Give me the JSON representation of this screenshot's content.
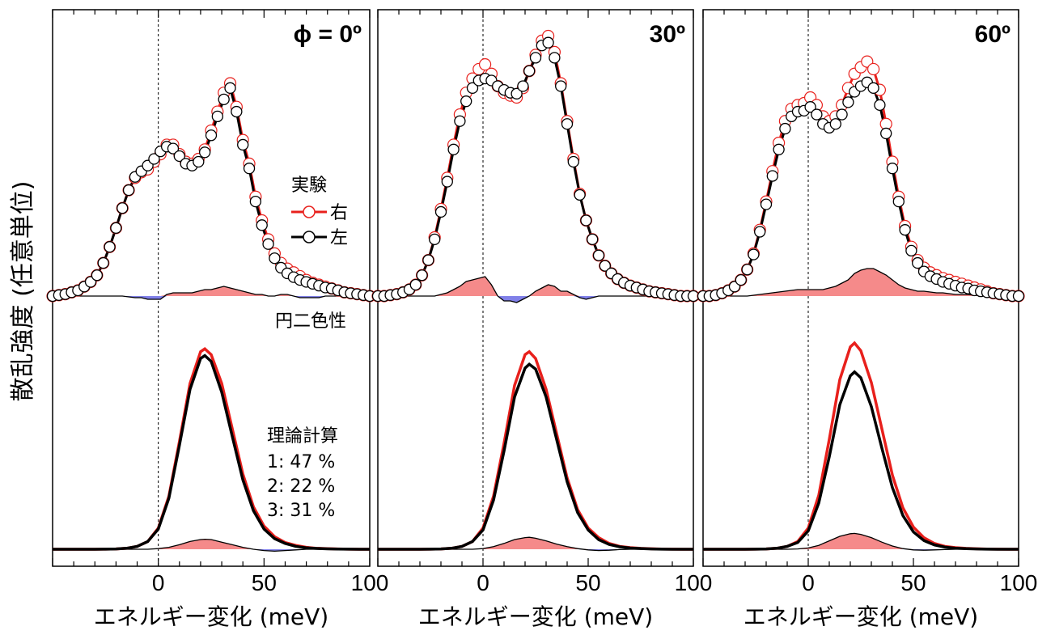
{
  "chart_data": {
    "type": "line",
    "ylabel": "散乱強度 (任意単位)",
    "xlabel": "エネルギー変化 (meV)",
    "xlim": [
      -50,
      100
    ],
    "xticks": [
      0,
      50,
      100
    ],
    "ylim": [
      -0.15,
      2.6
    ],
    "grid": false,
    "legend": {
      "experiment_title": "実験",
      "right_label": "右",
      "left_label": "左",
      "cd_label": "円二色性",
      "theory_title": "理論計算",
      "theory_lines": [
        "1: 47 %",
        "2: 22 %",
        "3: 31 %"
      ],
      "placement": "center-right of first panel"
    },
    "colors": {
      "right": "#e8201c",
      "left": "#000000",
      "cd_positive": "#f58a8a",
      "cd_negative": "#8080e8"
    },
    "panels": [
      {
        "label": "ϕ = 0º",
        "experiment": {
          "x": [
            -50,
            -47,
            -44,
            -41,
            -38,
            -35,
            -32,
            -29,
            -26,
            -23,
            -20,
            -17,
            -14,
            -11,
            -8,
            -5,
            -2,
            1,
            4,
            7,
            10,
            13,
            16,
            19,
            22,
            25,
            28,
            31,
            34,
            37,
            40,
            43,
            46,
            49,
            52,
            55,
            58,
            61,
            64,
            67,
            70,
            73,
            76,
            79,
            82,
            85,
            88,
            91,
            94,
            97,
            100
          ],
          "right": [
            1.6,
            1.61,
            1.62,
            1.64,
            1.66,
            1.7,
            1.75,
            1.82,
            1.95,
            2.12,
            2.32,
            2.53,
            2.72,
            2.85,
            2.91,
            2.94,
            3.02,
            3.1,
            3.2,
            3.2,
            3.1,
            3.02,
            3.0,
            3.05,
            3.15,
            3.35,
            3.55,
            3.75,
            3.85,
            3.6,
            3.25,
            3.0,
            2.65,
            2.4,
            2.2,
            2.05,
            1.95,
            1.89,
            1.85,
            1.81,
            1.77,
            1.74,
            1.72,
            1.7,
            1.68,
            1.66,
            1.64,
            1.63,
            1.62,
            1.61,
            1.6
          ],
          "left": [
            1.6,
            1.61,
            1.62,
            1.64,
            1.66,
            1.7,
            1.75,
            1.82,
            1.95,
            2.12,
            2.32,
            2.53,
            2.72,
            2.86,
            2.92,
            2.98,
            3.05,
            3.13,
            3.18,
            3.16,
            3.08,
            3.0,
            2.98,
            3.02,
            3.12,
            3.3,
            3.5,
            3.68,
            3.8,
            3.55,
            3.2,
            2.95,
            2.6,
            2.35,
            2.15,
            2.0,
            1.9,
            1.84,
            1.8,
            1.77,
            1.75,
            1.73,
            1.71,
            1.69,
            1.68,
            1.66,
            1.64,
            1.63,
            1.62,
            1.61,
            1.6
          ],
          "cd": [
            0,
            0,
            0,
            0,
            0,
            0,
            0,
            0,
            0,
            0,
            0,
            0,
            -0.005,
            -0.01,
            -0.01,
            -0.02,
            -0.02,
            -0.02,
            0.01,
            0.02,
            0.02,
            0.02,
            0.02,
            0.03,
            0.04,
            0.04,
            0.05,
            0.06,
            0.05,
            0.04,
            0.03,
            0.02,
            0.01,
            0.01,
            0.0,
            0.0,
            0.01,
            0.01,
            0.0,
            -0.01,
            -0.01,
            -0.01,
            -0.01,
            0,
            0,
            0,
            0,
            0,
            0,
            0,
            0
          ]
        },
        "theory": {
          "x": [
            -50,
            -45,
            -40,
            -35,
            -30,
            -25,
            -20,
            -15,
            -10,
            -5,
            0,
            5,
            10,
            15,
            20,
            22,
            25,
            30,
            35,
            40,
            45,
            50,
            55,
            60,
            65,
            70,
            75,
            80,
            85,
            90,
            95,
            100
          ],
          "right": [
            0,
            0,
            0,
            0,
            0,
            0.001,
            0.003,
            0.01,
            0.03,
            0.08,
            0.22,
            0.55,
            1.12,
            1.72,
            2.05,
            2.08,
            2.02,
            1.72,
            1.25,
            0.78,
            0.44,
            0.24,
            0.13,
            0.07,
            0.04,
            0.02,
            0.01,
            0.006,
            0.003,
            0.001,
            0,
            0
          ],
          "left": [
            0,
            0,
            0,
            0,
            0,
            0.001,
            0.003,
            0.01,
            0.03,
            0.08,
            0.21,
            0.53,
            1.08,
            1.66,
            1.98,
            2.01,
            1.95,
            1.63,
            1.17,
            0.72,
            0.4,
            0.21,
            0.11,
            0.06,
            0.03,
            0.015,
            0.008,
            0.004,
            0.002,
            0.001,
            0,
            0
          ],
          "cd": [
            0,
            0,
            0,
            0,
            0,
            0,
            0,
            0,
            0,
            0,
            0.01,
            0.03,
            0.07,
            0.12,
            0.15,
            0.155,
            0.15,
            0.11,
            0.07,
            0.03,
            0.0,
            -0.02,
            -0.03,
            -0.02,
            -0.01,
            0,
            0,
            0,
            0,
            0,
            0,
            0
          ]
        }
      },
      {
        "label": "30º",
        "experiment": {
          "x": [
            -50,
            -47,
            -44,
            -41,
            -38,
            -35,
            -32,
            -29,
            -26,
            -23,
            -20,
            -17,
            -14,
            -11,
            -8,
            -5,
            -2,
            1,
            4,
            7,
            10,
            13,
            16,
            19,
            22,
            25,
            28,
            31,
            34,
            37,
            40,
            43,
            46,
            49,
            52,
            55,
            58,
            61,
            64,
            67,
            70,
            73,
            76,
            79,
            82,
            85,
            88,
            91,
            94,
            97,
            100
          ],
          "right": [
            1.6,
            1.6,
            1.61,
            1.62,
            1.64,
            1.67,
            1.72,
            1.82,
            1.98,
            2.22,
            2.52,
            2.85,
            3.2,
            3.52,
            3.75,
            3.9,
            4.0,
            4.05,
            3.95,
            3.82,
            3.75,
            3.72,
            3.7,
            3.8,
            3.98,
            4.15,
            4.3,
            4.35,
            4.18,
            3.85,
            3.45,
            3.05,
            2.68,
            2.4,
            2.2,
            2.03,
            1.92,
            1.84,
            1.78,
            1.74,
            1.71,
            1.69,
            1.67,
            1.65,
            1.64,
            1.63,
            1.62,
            1.61,
            1.6,
            1.6,
            1.6
          ],
          "left": [
            1.6,
            1.6,
            1.61,
            1.62,
            1.64,
            1.67,
            1.72,
            1.82,
            1.98,
            2.2,
            2.49,
            2.81,
            3.15,
            3.45,
            3.66,
            3.8,
            3.88,
            3.9,
            3.88,
            3.82,
            3.78,
            3.75,
            3.74,
            3.82,
            3.98,
            4.12,
            4.25,
            4.28,
            4.12,
            3.82,
            3.42,
            3.02,
            2.67,
            2.4,
            2.2,
            2.03,
            1.92,
            1.84,
            1.78,
            1.74,
            1.71,
            1.69,
            1.67,
            1.65,
            1.64,
            1.63,
            1.62,
            1.61,
            1.6,
            1.6,
            1.6
          ],
          "cd": [
            0,
            0,
            0,
            0,
            0,
            0,
            0,
            0,
            0,
            0,
            0.01,
            0.02,
            0.04,
            0.06,
            0.09,
            0.1,
            0.11,
            0.12,
            0.07,
            0.0,
            -0.03,
            -0.03,
            -0.04,
            -0.02,
            0.0,
            0.03,
            0.05,
            0.07,
            0.06,
            0.03,
            0.03,
            0.01,
            -0.01,
            -0.02,
            -0.01,
            0,
            0,
            0,
            0,
            0,
            0,
            0,
            0,
            0,
            0,
            0,
            0,
            0,
            0,
            0,
            0
          ]
        },
        "theory": {
          "x": [
            -50,
            -45,
            -40,
            -35,
            -30,
            -25,
            -20,
            -15,
            -10,
            -5,
            0,
            5,
            10,
            15,
            20,
            22,
            25,
            30,
            35,
            40,
            45,
            50,
            55,
            60,
            65,
            70,
            75,
            80,
            85,
            90,
            95,
            100
          ],
          "right": [
            0,
            0,
            0,
            0,
            0,
            0.001,
            0.003,
            0.01,
            0.03,
            0.08,
            0.22,
            0.55,
            1.1,
            1.7,
            2.02,
            2.05,
            1.98,
            1.66,
            1.2,
            0.74,
            0.41,
            0.22,
            0.12,
            0.06,
            0.03,
            0.017,
            0.009,
            0.005,
            0.002,
            0.001,
            0,
            0
          ],
          "left": [
            0,
            0,
            0,
            0,
            0,
            0.001,
            0.003,
            0.01,
            0.03,
            0.08,
            0.2,
            0.51,
            1.02,
            1.58,
            1.88,
            1.92,
            1.87,
            1.58,
            1.14,
            0.7,
            0.38,
            0.2,
            0.1,
            0.05,
            0.025,
            0.013,
            0.007,
            0.003,
            0.001,
            0,
            0,
            0
          ],
          "cd": [
            0,
            0,
            0,
            0,
            0,
            0,
            0,
            0,
            0,
            0,
            0.01,
            0.04,
            0.09,
            0.15,
            0.18,
            0.185,
            0.17,
            0.13,
            0.08,
            0.04,
            0.01,
            -0.01,
            -0.02,
            -0.015,
            -0.005,
            0,
            0,
            0,
            0,
            0,
            0,
            0
          ]
        }
      },
      {
        "label": "60º",
        "experiment": {
          "x": [
            -50,
            -47,
            -44,
            -41,
            -38,
            -35,
            -32,
            -29,
            -26,
            -23,
            -20,
            -17,
            -14,
            -11,
            -8,
            -5,
            -2,
            1,
            4,
            7,
            10,
            13,
            16,
            19,
            22,
            25,
            28,
            31,
            34,
            37,
            40,
            43,
            46,
            49,
            52,
            55,
            58,
            61,
            64,
            67,
            70,
            73,
            76,
            79,
            82,
            85,
            88,
            91,
            94,
            97,
            100
          ],
          "right": [
            1.6,
            1.6,
            1.61,
            1.63,
            1.66,
            1.7,
            1.77,
            1.88,
            2.05,
            2.3,
            2.6,
            2.92,
            3.22,
            3.45,
            3.58,
            3.62,
            3.64,
            3.7,
            3.62,
            3.5,
            3.45,
            3.5,
            3.62,
            3.8,
            3.95,
            4.02,
            4.08,
            4.0,
            3.78,
            3.42,
            3.02,
            2.65,
            2.34,
            2.12,
            1.98,
            1.9,
            1.85,
            1.82,
            1.79,
            1.77,
            1.75,
            1.73,
            1.71,
            1.69,
            1.67,
            1.65,
            1.63,
            1.62,
            1.61,
            1.6,
            1.6
          ],
          "left": [
            1.6,
            1.6,
            1.61,
            1.63,
            1.66,
            1.7,
            1.77,
            1.88,
            2.04,
            2.28,
            2.57,
            2.87,
            3.15,
            3.37,
            3.5,
            3.55,
            3.56,
            3.6,
            3.52,
            3.42,
            3.38,
            3.42,
            3.52,
            3.65,
            3.76,
            3.82,
            3.86,
            3.8,
            3.62,
            3.32,
            2.95,
            2.6,
            2.3,
            2.08,
            1.95,
            1.86,
            1.81,
            1.78,
            1.75,
            1.73,
            1.71,
            1.69,
            1.68,
            1.66,
            1.65,
            1.64,
            1.63,
            1.62,
            1.61,
            1.6,
            1.6
          ],
          "cd": [
            0,
            0,
            0,
            0,
            0,
            0,
            0,
            0,
            0.005,
            0.01,
            0.015,
            0.02,
            0.025,
            0.03,
            0.035,
            0.04,
            0.04,
            0.04,
            0.04,
            0.04,
            0.05,
            0.06,
            0.08,
            0.1,
            0.14,
            0.16,
            0.17,
            0.17,
            0.15,
            0.13,
            0.1,
            0.07,
            0.05,
            0.04,
            0.03,
            0.03,
            0.025,
            0.02,
            0.02,
            0.015,
            0.01,
            0.01,
            0.01,
            0.005,
            0.005,
            0,
            0,
            0,
            0,
            0,
            0
          ]
        },
        "theory": {
          "x": [
            -50,
            -45,
            -40,
            -35,
            -30,
            -25,
            -20,
            -15,
            -10,
            -5,
            0,
            5,
            10,
            15,
            20,
            22,
            25,
            30,
            35,
            40,
            45,
            50,
            55,
            60,
            65,
            70,
            75,
            80,
            85,
            90,
            95,
            100
          ],
          "right": [
            0,
            0,
            0,
            0,
            0,
            0.001,
            0.003,
            0.01,
            0.03,
            0.08,
            0.22,
            0.56,
            1.14,
            1.76,
            2.1,
            2.14,
            2.06,
            1.73,
            1.25,
            0.77,
            0.43,
            0.23,
            0.12,
            0.06,
            0.03,
            0.017,
            0.009,
            0.005,
            0.002,
            0.001,
            0,
            0
          ],
          "left": [
            0,
            0,
            0,
            0,
            0,
            0.001,
            0.003,
            0.01,
            0.03,
            0.07,
            0.19,
            0.48,
            0.96,
            1.5,
            1.8,
            1.84,
            1.78,
            1.48,
            1.05,
            0.64,
            0.35,
            0.18,
            0.09,
            0.045,
            0.022,
            0.011,
            0.006,
            0.003,
            0.001,
            0,
            0,
            0
          ],
          "cd": [
            0,
            0,
            0,
            0,
            0,
            0,
            0,
            0,
            0,
            0.005,
            0.02,
            0.06,
            0.13,
            0.2,
            0.24,
            0.245,
            0.23,
            0.18,
            0.11,
            0.05,
            0.01,
            -0.01,
            -0.015,
            -0.01,
            -0.005,
            0,
            0,
            0,
            0,
            0,
            0,
            0
          ]
        }
      }
    ]
  }
}
